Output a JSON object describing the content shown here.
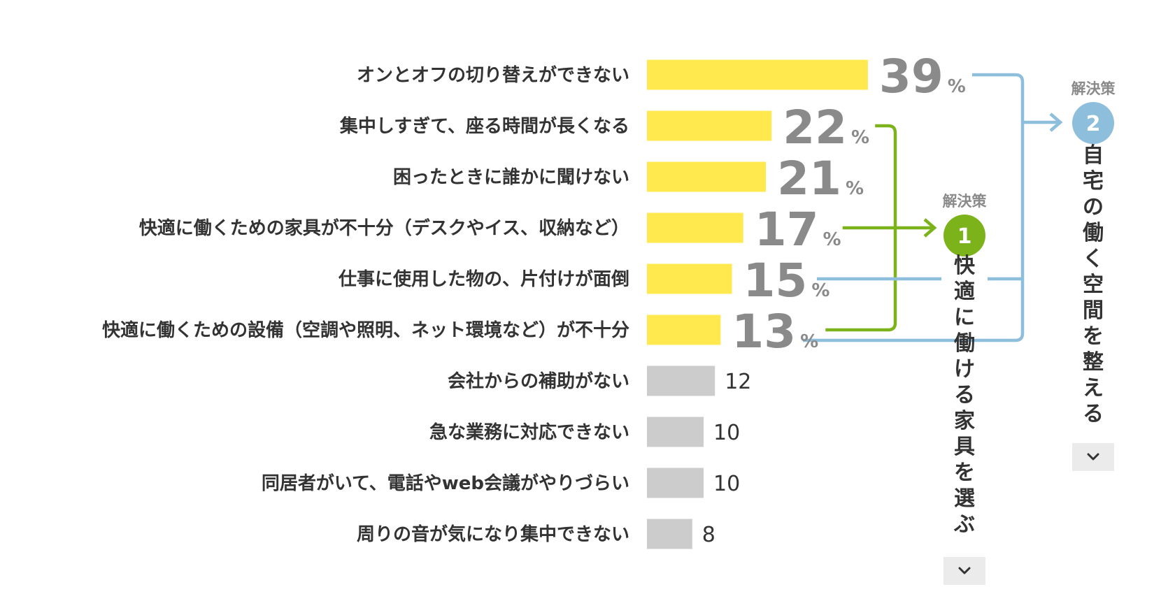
{
  "chart_data": {
    "type": "bar",
    "orientation": "horizontal",
    "categories": [
      "オンとオフの切り替えができない",
      "集中しすぎて、座る時間が長くなる",
      "困ったときに誰かに聞けない",
      "快適に働くための家具が不十分（デスクやイス、収納など）",
      "仕事に使用した物の、片付けが面倒",
      "快適に働くための設備（空調や照明、ネット環境など）が不十分",
      "会社からの補助がない",
      "急な業務に対応できない",
      "同居者がいて、電話やweb会議がやりづらい",
      "周りの音が気になり集中できない"
    ],
    "values": [
      39,
      22,
      21,
      17,
      15,
      13,
      12,
      10,
      10,
      8
    ],
    "value_labels": [
      "39",
      "22",
      "21",
      "17",
      "15",
      "13",
      "12",
      "10",
      "10",
      "8"
    ],
    "percent_symbol": "%",
    "highlighted": [
      true,
      true,
      true,
      true,
      true,
      true,
      false,
      false,
      false,
      false
    ],
    "unit": "%"
  },
  "solutions": [
    {
      "heading": "解決策",
      "number": "1",
      "text": "快適に働ける家具を選ぶ",
      "color": "#7cb31a",
      "linked_items": [
        1,
        3,
        5
      ]
    },
    {
      "heading": "解決策",
      "number": "2",
      "text": "自宅の働く空間を整える",
      "color": "#8dbedb",
      "linked_items": [
        0,
        4,
        5
      ]
    }
  ],
  "colors": {
    "bar_highlight": "#ffe94f",
    "bar_normal": "#cccccc",
    "big_value": "#8a8a8a",
    "text": "#333333",
    "green": "#7cb31a",
    "blue": "#8dbedb",
    "chevron_box": "#ebebeb"
  },
  "icons": {
    "expand": "chevron-down-icon",
    "connector_arrow": "arrow-right-icon"
  }
}
